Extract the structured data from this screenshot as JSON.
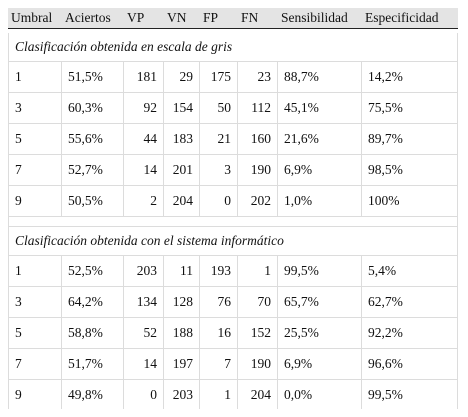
{
  "table": {
    "header": [
      "Umbral",
      "Aciertos",
      "VP",
      "VN",
      "FP",
      "FN",
      "Sensibilidad",
      "Especificidad"
    ],
    "sections": [
      {
        "title": "Clasificación obtenida en escala de gris",
        "rows": [
          [
            "1",
            "51,5%",
            "181",
            "29",
            "175",
            "23",
            "88,7%",
            "14,2%"
          ],
          [
            "3",
            "60,3%",
            "92",
            "154",
            "50",
            "112",
            "45,1%",
            "75,5%"
          ],
          [
            "5",
            "55,6%",
            "44",
            "183",
            "21",
            "160",
            "21,6%",
            "89,7%"
          ],
          [
            "7",
            "52,7%",
            "14",
            "201",
            "3",
            "190",
            "6,9%",
            "98,5%"
          ],
          [
            "9",
            "50,5%",
            "2",
            "204",
            "0",
            "202",
            "1,0%",
            "100%"
          ]
        ]
      },
      {
        "title": "Clasificación obtenida con el sistema informático",
        "rows": [
          [
            "1",
            "52,5%",
            "203",
            "11",
            "193",
            "1",
            "99,5%",
            "5,4%"
          ],
          [
            "3",
            "64,2%",
            "134",
            "128",
            "76",
            "70",
            "65,7%",
            "62,7%"
          ],
          [
            "5",
            "58,8%",
            "52",
            "188",
            "16",
            "152",
            "25,5%",
            "92,2%"
          ],
          [
            "7",
            "51,7%",
            "14",
            "197",
            "7",
            "190",
            "6,9%",
            "96,6%"
          ],
          [
            "9",
            "49,8%",
            "0",
            "203",
            "1",
            "204",
            "0,0%",
            "99,5%"
          ]
        ]
      }
    ]
  }
}
